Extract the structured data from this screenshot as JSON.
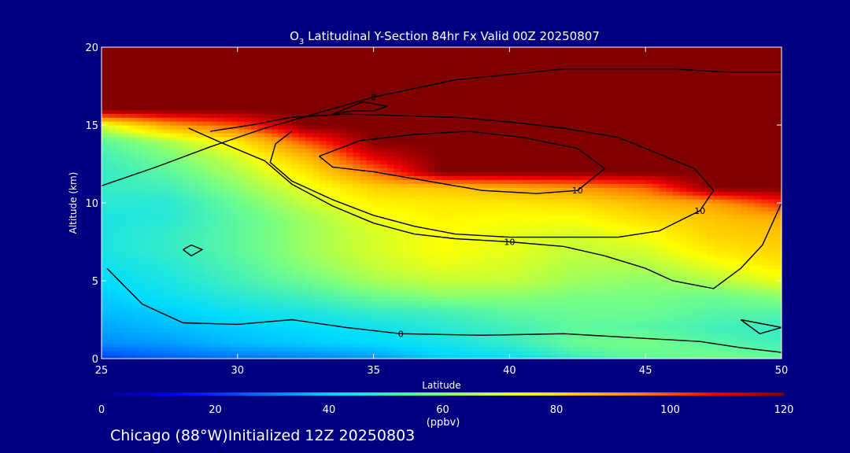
{
  "chart_data": {
    "type": "heatmap",
    "title_prefix": "O",
    "title_subscript": "3",
    "title_rest": " Latitudinal Y-Section 84hr  Fx Valid 00Z 20250807",
    "xlabel": "Latitude",
    "ylabel": "Altitude (km)",
    "xlim": [
      25,
      50
    ],
    "ylim": [
      0,
      20
    ],
    "x_ticks": [
      "25",
      "30",
      "35",
      "40",
      "45",
      "50"
    ],
    "y_ticks": [
      "0",
      "5",
      "10",
      "15",
      "20"
    ],
    "colorbar": {
      "range": [
        0,
        120
      ],
      "ticks": [
        "0",
        "20",
        "40",
        "60",
        "80",
        "100",
        "120"
      ],
      "unit": "(ppbv)"
    },
    "ozone_field": {
      "latitudes": [
        25,
        27.5,
        30,
        32.5,
        35,
        37.5,
        40,
        42.5,
        45,
        47.5,
        50
      ],
      "altitudes_km": [
        0,
        1,
        2,
        3,
        4,
        5,
        6,
        7,
        8,
        9,
        10,
        11,
        12,
        13,
        14,
        15,
        16,
        17,
        18,
        19,
        20
      ],
      "values_ppbv": [
        [
          22,
          26,
          28,
          30,
          33,
          40,
          42,
          50,
          56,
          60,
          58
        ],
        [
          32,
          34,
          38,
          40,
          42,
          45,
          50,
          58,
          60,
          55,
          52
        ],
        [
          35,
          38,
          40,
          42,
          44,
          48,
          52,
          56,
          55,
          52,
          50
        ],
        [
          38,
          40,
          44,
          46,
          50,
          52,
          56,
          58,
          58,
          55,
          55
        ],
        [
          40,
          44,
          48,
          52,
          58,
          62,
          62,
          60,
          60,
          58,
          62
        ],
        [
          42,
          46,
          52,
          58,
          65,
          68,
          68,
          64,
          62,
          66,
          72
        ],
        [
          44,
          48,
          54,
          62,
          68,
          72,
          70,
          66,
          66,
          72,
          78
        ],
        [
          46,
          50,
          56,
          64,
          70,
          74,
          72,
          68,
          70,
          78,
          82
        ],
        [
          46,
          50,
          56,
          64,
          70,
          74,
          72,
          70,
          74,
          82,
          84
        ],
        [
          46,
          48,
          56,
          64,
          72,
          76,
          74,
          74,
          80,
          84,
          88
        ],
        [
          48,
          48,
          58,
          68,
          76,
          78,
          78,
          80,
          86,
          90,
          104
        ],
        [
          50,
          52,
          62,
          72,
          82,
          84,
          88,
          92,
          98,
          120,
          120
        ],
        [
          50,
          56,
          66,
          78,
          96,
          120,
          120,
          120,
          120,
          120,
          120
        ],
        [
          52,
          60,
          70,
          86,
          110,
          120,
          120,
          120,
          120,
          120,
          120
        ],
        [
          56,
          66,
          78,
          100,
          120,
          120,
          120,
          120,
          120,
          120,
          120
        ],
        [
          70,
          90,
          100,
          120,
          120,
          120,
          120,
          120,
          120,
          120,
          120
        ],
        [
          120,
          120,
          120,
          120,
          120,
          120,
          120,
          120,
          120,
          120,
          120
        ],
        [
          120,
          120,
          120,
          120,
          120,
          120,
          120,
          120,
          120,
          120,
          120
        ],
        [
          120,
          120,
          120,
          120,
          120,
          120,
          120,
          120,
          120,
          120,
          120
        ],
        [
          120,
          120,
          120,
          120,
          120,
          120,
          120,
          120,
          120,
          120,
          120
        ],
        [
          120,
          120,
          120,
          120,
          120,
          120,
          120,
          120,
          120,
          120,
          120
        ]
      ]
    },
    "contours": [
      {
        "label": "0",
        "points": [
          [
            25.2,
            5.8
          ],
          [
            26.5,
            3.5
          ],
          [
            28,
            2.3
          ],
          [
            30,
            2.2
          ],
          [
            32,
            2.5
          ],
          [
            34,
            2.0
          ],
          [
            36,
            1.6
          ],
          [
            39,
            1.5
          ],
          [
            42,
            1.6
          ],
          [
            45,
            1.3
          ],
          [
            47,
            1.1
          ],
          [
            48.5,
            0.7
          ],
          [
            50,
            0.4
          ]
        ]
      },
      {
        "label": "0",
        "points": [
          [
            25,
            11.1
          ],
          [
            27,
            12.3
          ],
          [
            29,
            13.6
          ],
          [
            31,
            14.8
          ],
          [
            33,
            15.8
          ],
          [
            35,
            16.8
          ],
          [
            38,
            17.9
          ],
          [
            42,
            18.6
          ],
          [
            46,
            18.6
          ],
          [
            48,
            18.4
          ],
          [
            50,
            18.4
          ]
        ]
      },
      {
        "label": "10",
        "points": [
          [
            28.2,
            14.8
          ],
          [
            29.5,
            13.8
          ],
          [
            31,
            12.7
          ],
          [
            32,
            11.2
          ],
          [
            33.5,
            9.8
          ],
          [
            35,
            8.7
          ],
          [
            36.5,
            8.0
          ],
          [
            38,
            7.7
          ],
          [
            40,
            7.5
          ],
          [
            42,
            7.2
          ],
          [
            43.5,
            6.6
          ],
          [
            45,
            5.8
          ],
          [
            46,
            5.0
          ],
          [
            47.5,
            4.5
          ],
          [
            48.5,
            5.8
          ],
          [
            49.3,
            7.3
          ],
          [
            50,
            10.0
          ]
        ]
      },
      {
        "label": "10",
        "points": [
          [
            29,
            14.6
          ],
          [
            30.5,
            15.0
          ],
          [
            32,
            15.5
          ],
          [
            34,
            15.7
          ],
          [
            36,
            15.6
          ],
          [
            38,
            15.5
          ],
          [
            40,
            15.2
          ],
          [
            42,
            14.8
          ],
          [
            44,
            14.2
          ],
          [
            45,
            13.5
          ],
          [
            46.8,
            12.2
          ],
          [
            47.5,
            10.8
          ],
          [
            47,
            9.5
          ],
          [
            45.5,
            8.2
          ],
          [
            44,
            7.8
          ],
          [
            42,
            7.8
          ],
          [
            40,
            7.8
          ],
          [
            38,
            8.0
          ],
          [
            36.5,
            8.5
          ],
          [
            35,
            9.2
          ],
          [
            33.5,
            10.2
          ],
          [
            32,
            11.4
          ],
          [
            31.2,
            12.6
          ],
          [
            31.4,
            13.8
          ],
          [
            32,
            14.6
          ]
        ]
      },
      {
        "label": "10",
        "points": [
          [
            33,
            13.0
          ],
          [
            34.5,
            14.0
          ],
          [
            36.5,
            14.4
          ],
          [
            38.5,
            14.6
          ],
          [
            40.5,
            14.2
          ],
          [
            42.5,
            13.5
          ],
          [
            43.5,
            12.2
          ],
          [
            42.5,
            10.8
          ],
          [
            41,
            10.6
          ],
          [
            39,
            10.8
          ],
          [
            37,
            11.4
          ],
          [
            35,
            12.0
          ],
          [
            33.5,
            12.3
          ],
          [
            33,
            13.0
          ]
        ]
      },
      {
        "label": "",
        "points": [
          [
            33.5,
            15.7
          ],
          [
            34.2,
            15.9
          ],
          [
            35,
            15.9
          ],
          [
            35.5,
            16.2
          ],
          [
            34.6,
            16.5
          ],
          [
            33.5,
            15.7
          ]
        ]
      },
      {
        "label": "",
        "points": [
          [
            28,
            7.0
          ],
          [
            28.3,
            7.3
          ],
          [
            28.7,
            7.0
          ],
          [
            28.3,
            6.6
          ],
          [
            28,
            7.0
          ]
        ]
      },
      {
        "label": "",
        "points": [
          [
            48.5,
            2.5
          ],
          [
            50,
            2.0
          ],
          [
            49.2,
            1.6
          ],
          [
            48.5,
            2.5
          ]
        ]
      }
    ]
  },
  "title": {
    "prefix": "O",
    "subscript": "3",
    "rest": " Latitudinal Y-Section 84hr  Fx Valid 00Z 20250807"
  },
  "footer": {
    "text": "Chicago (88°W)Initialized 12Z 20250803"
  }
}
